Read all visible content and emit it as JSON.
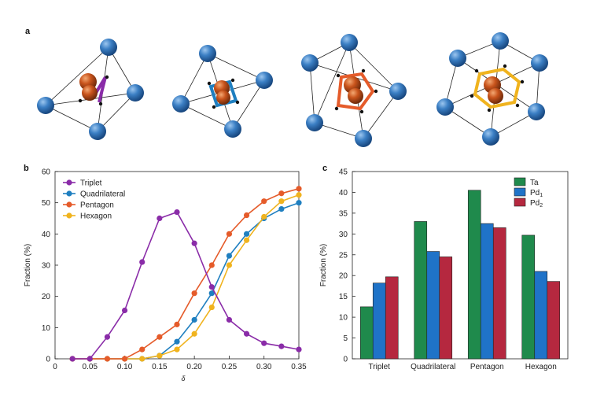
{
  "panel_labels": {
    "a": "a",
    "b": "b",
    "c": "c"
  },
  "colors": {
    "blue_atom": "#2f6db3",
    "orange_atom": "#c8521a",
    "triplet": "#8a2ca8",
    "quadrilateral": "#1f7fc0",
    "pentagon": "#e55b2a",
    "hexagon": "#f0b31e",
    "ta": "#1f8a4c",
    "pd1": "#1f73c8",
    "pd2": "#b5283f"
  },
  "chart_data": [
    {
      "panel": "b",
      "type": "line",
      "title": "",
      "xlabel": "δ",
      "ylabel": "Fraction (%)",
      "xlim": [
        0,
        0.35
      ],
      "ylim": [
        0,
        60
      ],
      "xticks": [
        "0",
        "0.05",
        "0.10",
        "0.15",
        "0.20",
        "0.25",
        "0.30",
        "0.35"
      ],
      "yticks": [
        "0",
        "10",
        "20",
        "30",
        "40",
        "50",
        "60"
      ],
      "legend_position": "top-left",
      "x": [
        0.025,
        0.05,
        0.075,
        0.1,
        0.125,
        0.15,
        0.175,
        0.2,
        0.225,
        0.25,
        0.275,
        0.3,
        0.325,
        0.35
      ],
      "series": [
        {
          "name": "Triplet",
          "color": "#8a2ca8",
          "values": [
            0,
            0,
            7,
            15.5,
            31,
            45,
            47,
            37,
            23,
            12.5,
            8,
            5,
            4,
            3
          ]
        },
        {
          "name": "Quadrilateral",
          "color": "#1f7fc0",
          "values": [
            0,
            0,
            0,
            0,
            0,
            1,
            5.5,
            12.5,
            21,
            33,
            40,
            45,
            48,
            50
          ]
        },
        {
          "name": "Pentagon",
          "color": "#e55b2a",
          "values": [
            0,
            0,
            0,
            0,
            3,
            7,
            11,
            21,
            30,
            40,
            46,
            50.5,
            53,
            54.5
          ]
        },
        {
          "name": "Hexagon",
          "color": "#f0b31e",
          "values": [
            0,
            0,
            0,
            0,
            0,
            1,
            3,
            8,
            16.5,
            30,
            38,
            45.5,
            50.5,
            52.5
          ]
        }
      ]
    },
    {
      "panel": "c",
      "type": "bar",
      "title": "",
      "xlabel": "",
      "ylabel": "Fraction (%)",
      "ylim": [
        0,
        45
      ],
      "yticks": [
        "0",
        "5",
        "10",
        "15",
        "20",
        "25",
        "30",
        "35",
        "40",
        "45"
      ],
      "legend_position": "top-right",
      "categories": [
        "Triplet",
        "Quadrilateral",
        "Pentagon",
        "Hexagon"
      ],
      "series": [
        {
          "name": "Ta",
          "color": "#1f8a4c",
          "values": [
            12.5,
            33,
            40.5,
            29.7
          ]
        },
        {
          "name": "Pd",
          "sub": "1",
          "color": "#1f73c8",
          "values": [
            18.2,
            25.8,
            32.5,
            21
          ]
        },
        {
          "name": "Pd",
          "sub": "2",
          "color": "#b5283f",
          "values": [
            19.7,
            24.5,
            31.5,
            18.6
          ]
        }
      ]
    }
  ]
}
